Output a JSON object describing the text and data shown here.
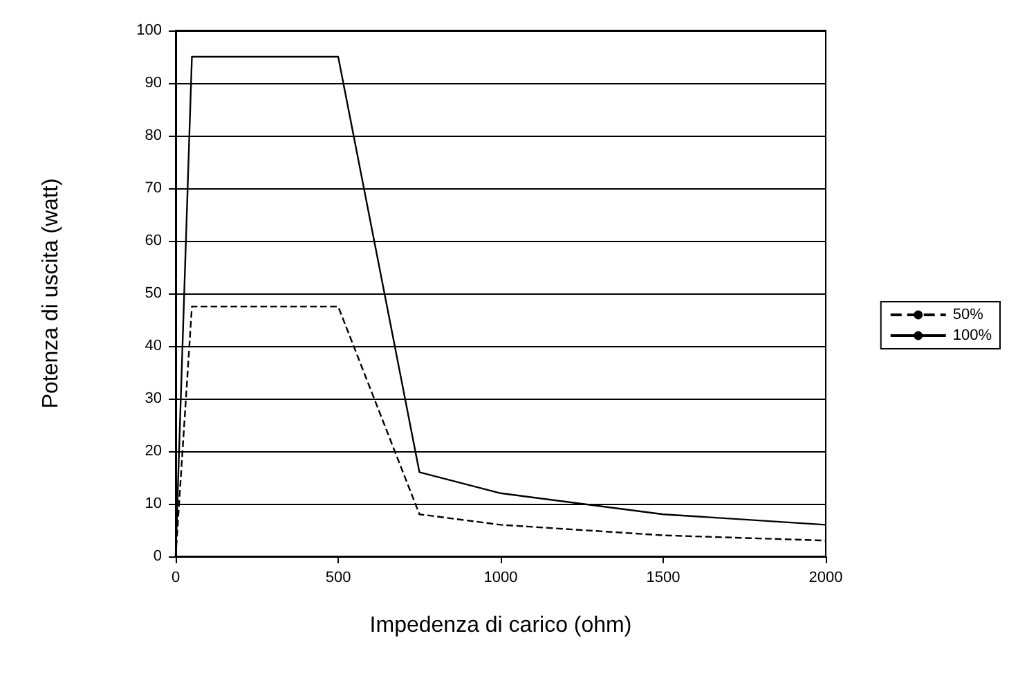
{
  "chart_data": {
    "type": "line",
    "xlabel": "Impedenza di carico (ohm)",
    "ylabel": "Potenza di uscita (watt)",
    "xlim": [
      0,
      2000
    ],
    "xticks": [
      0,
      500,
      1000,
      1500,
      2000
    ],
    "ylim": [
      0,
      100
    ],
    "yticks": [
      0,
      10,
      20,
      30,
      40,
      50,
      60,
      70,
      80,
      90,
      100
    ],
    "grid": "y",
    "legend": "right",
    "marker": "none",
    "series": [
      {
        "name": "50%",
        "color": "#000000",
        "line_style": "dashed",
        "x": [
          0,
          50,
          500,
          750,
          1000,
          1250,
          1500,
          2000
        ],
        "values": [
          0,
          47.5,
          47.5,
          8,
          6,
          5,
          4,
          3
        ]
      },
      {
        "name": "100%",
        "color": "#000000",
        "line_style": "solid",
        "x": [
          0,
          50,
          500,
          750,
          1000,
          1500,
          2000
        ],
        "values": [
          0,
          95,
          95,
          16,
          12,
          8,
          6
        ]
      }
    ]
  }
}
